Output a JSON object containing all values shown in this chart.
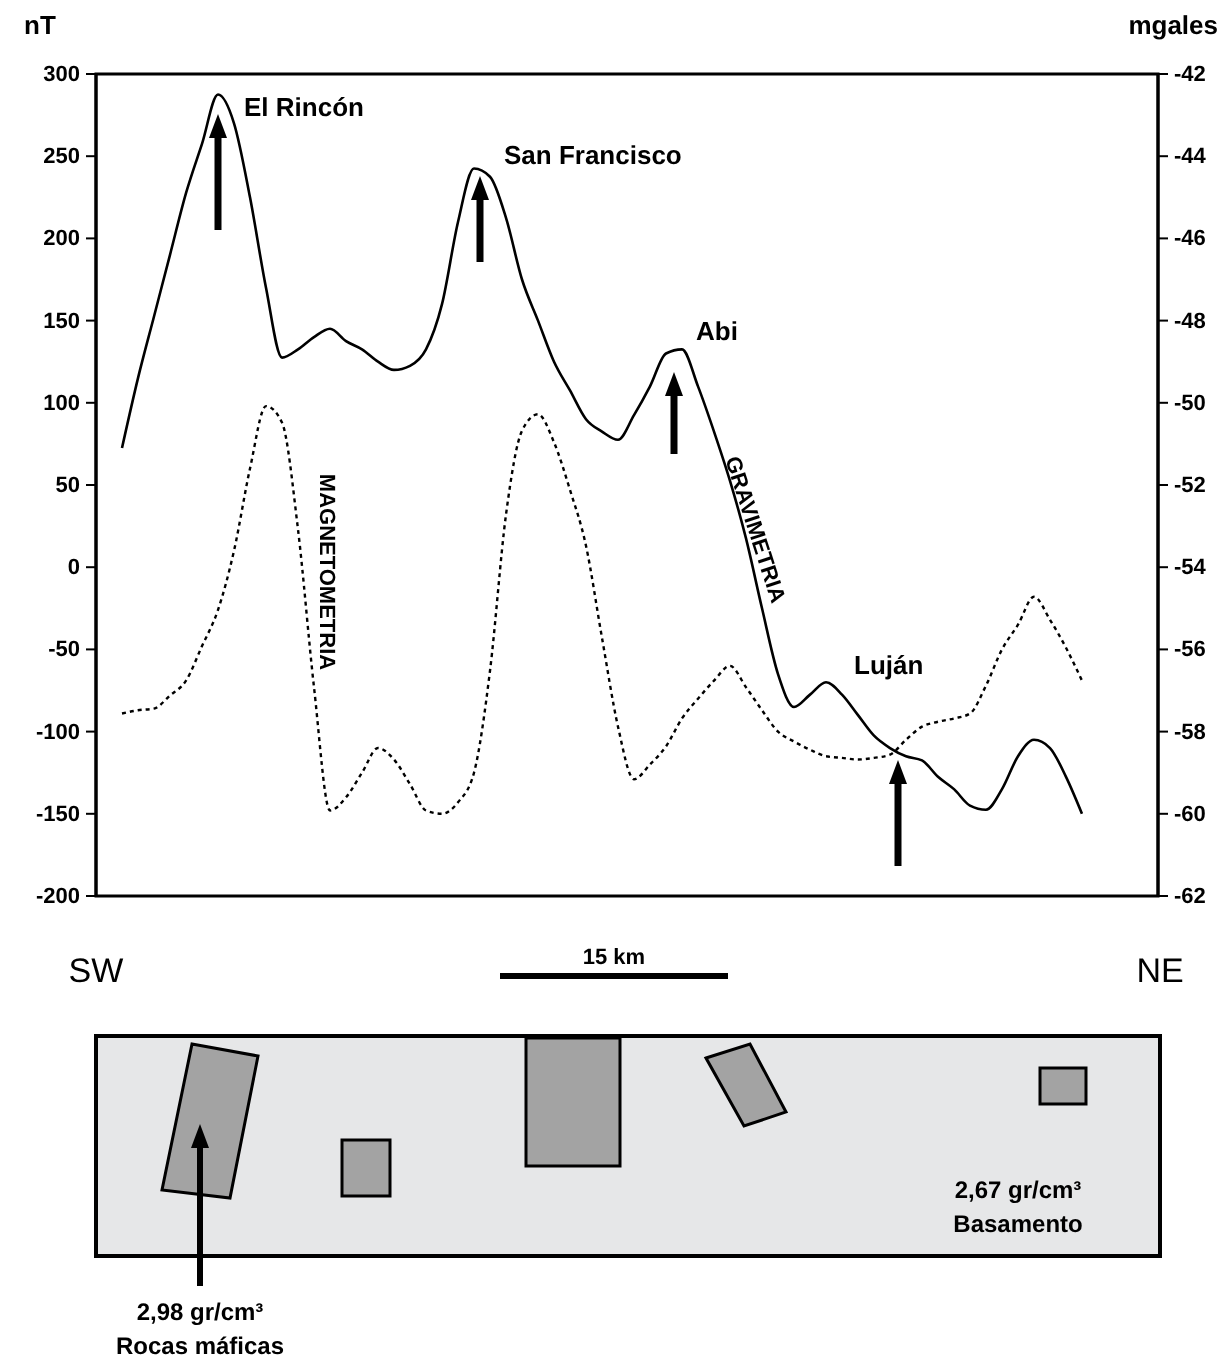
{
  "chart_data": {
    "type": "line",
    "categories": [
      null,
      null,
      null,
      null,
      null,
      null,
      null,
      null,
      null,
      null,
      null,
      null,
      null,
      null,
      null,
      null,
      null,
      null,
      null,
      null,
      null,
      null,
      null,
      null,
      null,
      null,
      null,
      null,
      null,
      null,
      null,
      null,
      null,
      null,
      null,
      null,
      null,
      null,
      null,
      null,
      null,
      null,
      null,
      null,
      null,
      null,
      null,
      null,
      null,
      null,
      null,
      null,
      null,
      null,
      null,
      null,
      null,
      null,
      null,
      null,
      null
    ],
    "series": [
      {
        "name": "MAGNETOMETRIA",
        "color": "#000000",
        "line_style": "dotted",
        "values": [
          -89,
          -87,
          -86,
          -78,
          -69,
          -48,
          -26,
          10,
          60,
          98,
          88,
          23,
          -73,
          -148,
          -140,
          -125,
          -110,
          -117,
          -132,
          -148,
          -150,
          -143,
          -125,
          -63,
          32,
          83,
          93,
          76,
          47,
          13,
          -43,
          -97,
          -129,
          -120,
          -109,
          -92,
          -80,
          -69,
          -60,
          -73,
          -87,
          -100,
          -106,
          -111,
          -115,
          -116,
          -117,
          -116,
          -114,
          -105,
          -97,
          -94,
          -92,
          -89,
          -72,
          -50,
          -35,
          -18,
          -32,
          -49,
          -69
        ]
      },
      {
        "name": "GRAVIMETRIA",
        "color": "#000000",
        "line_style": "solid",
        "axis": "y2",
        "values": [
          -51.1,
          -49.4,
          -47.9,
          -46.4,
          -44.9,
          -43.7,
          -42.5,
          -43.2,
          -45.0,
          -47.2,
          -48.9,
          -48.7,
          -48.4,
          -48.2,
          -48.5,
          -48.7,
          -49.0,
          -49.2,
          -49.1,
          -48.7,
          -47.6,
          -45.6,
          -44.3,
          -44.5,
          -45.5,
          -47.0,
          -48.0,
          -49.0,
          -49.7,
          -50.4,
          -50.7,
          -50.9,
          -50.3,
          -49.6,
          -48.8,
          -48.7,
          -49.6,
          -50.7,
          -51.9,
          -53.3,
          -55.0,
          -56.6,
          -57.4,
          -57.1,
          -56.8,
          -57.1,
          -57.6,
          -58.1,
          -58.4,
          -58.6,
          -58.7,
          -59.1,
          -59.4,
          -59.8,
          -59.9,
          -59.4,
          -58.6,
          -58.2,
          -58.4,
          -59.1,
          -60.0
        ]
      }
    ],
    "ylabel": "nT",
    "y2label": "mgales",
    "ylim": [
      -200,
      300
    ],
    "yticks": [
      -200,
      -150,
      -100,
      -50,
      0,
      50,
      100,
      150,
      200,
      250,
      300
    ],
    "y2lim": [
      -62,
      -42
    ],
    "y2ticks": [
      -62,
      -60,
      -58,
      -56,
      -54,
      -52,
      -50,
      -48,
      -46,
      -44,
      -42
    ],
    "annotations": [
      "El Rincón",
      "San Francisco",
      "Abi",
      "Luján",
      "SW",
      "NE",
      "15 km",
      "2,98 gr/cm³",
      "Rocas máficas",
      "2,67 gr/cm³",
      "Basamento"
    ]
  }
}
